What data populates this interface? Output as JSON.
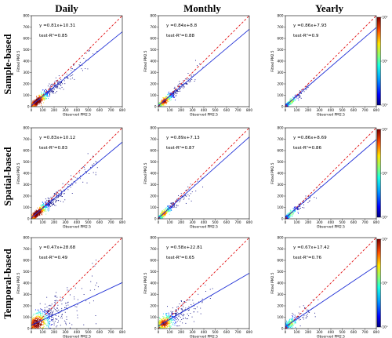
{
  "figure": {
    "columns": [
      "Daily",
      "Monthly",
      "Yearly"
    ],
    "rows": [
      "Sample-based",
      "Spatial-based",
      "Temporal-based"
    ],
    "colors": {
      "fit_line": "#1f2fd6",
      "one_to_one": "#e31a1c",
      "colormap": [
        "#00007f",
        "#0000ff",
        "#00a0ff",
        "#19ffe3",
        "#7cff7a",
        "#ffe500",
        "#ff4d00",
        "#7f0000"
      ]
    },
    "colorbar": {
      "type": "log",
      "ticks": [
        "10^0",
        "10^1",
        "10^2"
      ]
    }
  },
  "chart_data": [
    {
      "type": "scatter",
      "row": "Sample-based",
      "column": "Daily",
      "xlabel": "Observed PM2.5",
      "ylabel": "Fitted PM2.5",
      "xlim": [
        0,
        800
      ],
      "ylim": [
        0,
        800
      ],
      "xticks": [
        0,
        100,
        200,
        300,
        400,
        500,
        600,
        700,
        800
      ],
      "yticks": [
        0,
        100,
        200,
        300,
        400,
        500,
        600,
        700,
        800
      ],
      "equation": "y =0.81x+10.31",
      "r2_label": "test-R²=0.85",
      "slope": 0.81,
      "intercept": 10.31,
      "r2": 0.85,
      "spread": 0.95,
      "density": 1.0
    },
    {
      "type": "scatter",
      "row": "Sample-based",
      "column": "Monthly",
      "xlabel": "Observed PM2.5",
      "ylabel": "Fitted PM2.5",
      "xlim": [
        0,
        800
      ],
      "ylim": [
        0,
        800
      ],
      "xticks": [
        0,
        100,
        200,
        300,
        400,
        500,
        600,
        700,
        800
      ],
      "yticks": [
        0,
        100,
        200,
        300,
        400,
        500,
        600,
        700,
        800
      ],
      "equation": "y =0.84x+8.8",
      "r2_label": "test-R²=0.88",
      "slope": 0.84,
      "intercept": 8.8,
      "r2": 0.88,
      "spread": 0.6,
      "density": 0.7
    },
    {
      "type": "scatter",
      "row": "Sample-based",
      "column": "Yearly",
      "xlabel": "Observed PM2.5",
      "ylabel": "Fitted PM2.5",
      "xlim": [
        0,
        800
      ],
      "ylim": [
        0,
        800
      ],
      "xticks": [
        0,
        100,
        200,
        300,
        400,
        500,
        600,
        700,
        800
      ],
      "yticks": [
        0,
        100,
        200,
        300,
        400,
        500,
        600,
        700,
        800
      ],
      "equation": "y =0.86x+7.93",
      "r2_label": "test-R²=0.9",
      "slope": 0.86,
      "intercept": 7.93,
      "r2": 0.9,
      "spread": 0.25,
      "density": 0.25
    },
    {
      "type": "scatter",
      "row": "Spatial-based",
      "column": "Daily",
      "xlabel": "Observed PM2.5",
      "ylabel": "Fitted PM2.5",
      "xlim": [
        0,
        800
      ],
      "ylim": [
        0,
        800
      ],
      "xticks": [
        0,
        100,
        200,
        300,
        400,
        500,
        600,
        700,
        800
      ],
      "yticks": [
        0,
        100,
        200,
        300,
        400,
        500,
        600,
        700,
        800
      ],
      "equation": "y =0.83x+10.12",
      "r2_label": "test-R²=0.83",
      "slope": 0.83,
      "intercept": 10.12,
      "r2": 0.83,
      "spread": 0.95,
      "density": 1.0
    },
    {
      "type": "scatter",
      "row": "Spatial-based",
      "column": "Monthly",
      "xlabel": "Observed PM2.5",
      "ylabel": "Fitted PM2.5",
      "xlim": [
        0,
        800
      ],
      "ylim": [
        0,
        800
      ],
      "xticks": [
        0,
        100,
        200,
        300,
        400,
        500,
        600,
        700,
        800
      ],
      "yticks": [
        0,
        100,
        200,
        300,
        400,
        500,
        600,
        700,
        800
      ],
      "equation": "y =0.89x+7.13",
      "r2_label": "test-R²=0.87",
      "slope": 0.89,
      "intercept": 7.13,
      "r2": 0.87,
      "spread": 0.5,
      "density": 0.5
    },
    {
      "type": "scatter",
      "row": "Spatial-based",
      "column": "Yearly",
      "xlabel": "Observed PM2.5",
      "ylabel": "Fitted PM2.5",
      "xlim": [
        0,
        800
      ],
      "ylim": [
        0,
        800
      ],
      "xticks": [
        0,
        100,
        200,
        300,
        400,
        500,
        600,
        700,
        800
      ],
      "yticks": [
        0,
        100,
        200,
        300,
        400,
        500,
        600,
        700,
        800
      ],
      "equation": "y =0.86x+8.69",
      "r2_label": "test-R²=0.86",
      "slope": 0.86,
      "intercept": 8.69,
      "r2": 0.86,
      "spread": 0.25,
      "density": 0.2
    },
    {
      "type": "scatter",
      "row": "Temporal-based",
      "column": "Daily",
      "xlabel": "Observed PM2.5",
      "ylabel": "Fitted PM2.5",
      "xlim": [
        0,
        800
      ],
      "ylim": [
        0,
        800
      ],
      "xticks": [
        0,
        100,
        200,
        300,
        400,
        500,
        600,
        700,
        800
      ],
      "yticks": [
        0,
        100,
        200,
        300,
        400,
        500,
        600,
        700,
        800
      ],
      "equation": "y =0.47x+28.68",
      "r2_label": "test-R²=0.49",
      "slope": 0.47,
      "intercept": 28.68,
      "r2": 0.49,
      "spread": 1.0,
      "density": 1.0
    },
    {
      "type": "scatter",
      "row": "Temporal-based",
      "column": "Monthly",
      "xlabel": "Observed PM2.5",
      "ylabel": "Fitted PM2.5",
      "xlim": [
        0,
        800
      ],
      "ylim": [
        0,
        800
      ],
      "xticks": [
        0,
        100,
        200,
        300,
        400,
        500,
        600,
        700,
        800
      ],
      "yticks": [
        0,
        100,
        200,
        300,
        400,
        500,
        600,
        700,
        800
      ],
      "equation": "y =0.58x+22.81",
      "r2_label": "test-R²=0.65",
      "slope": 0.58,
      "intercept": 22.81,
      "r2": 0.65,
      "spread": 0.75,
      "density": 0.75
    },
    {
      "type": "scatter",
      "row": "Temporal-based",
      "column": "Yearly",
      "xlabel": "Observed PM2.5",
      "ylabel": "Fitted PM2.5",
      "xlim": [
        0,
        800
      ],
      "ylim": [
        0,
        800
      ],
      "xticks": [
        0,
        100,
        200,
        300,
        400,
        500,
        600,
        700,
        800
      ],
      "yticks": [
        0,
        100,
        200,
        300,
        400,
        500,
        600,
        700,
        800
      ],
      "equation": "y =0.67x+17.42",
      "r2_label": "test-R²=0.76",
      "slope": 0.67,
      "intercept": 17.42,
      "r2": 0.76,
      "spread": 0.3,
      "density": 0.25
    }
  ]
}
